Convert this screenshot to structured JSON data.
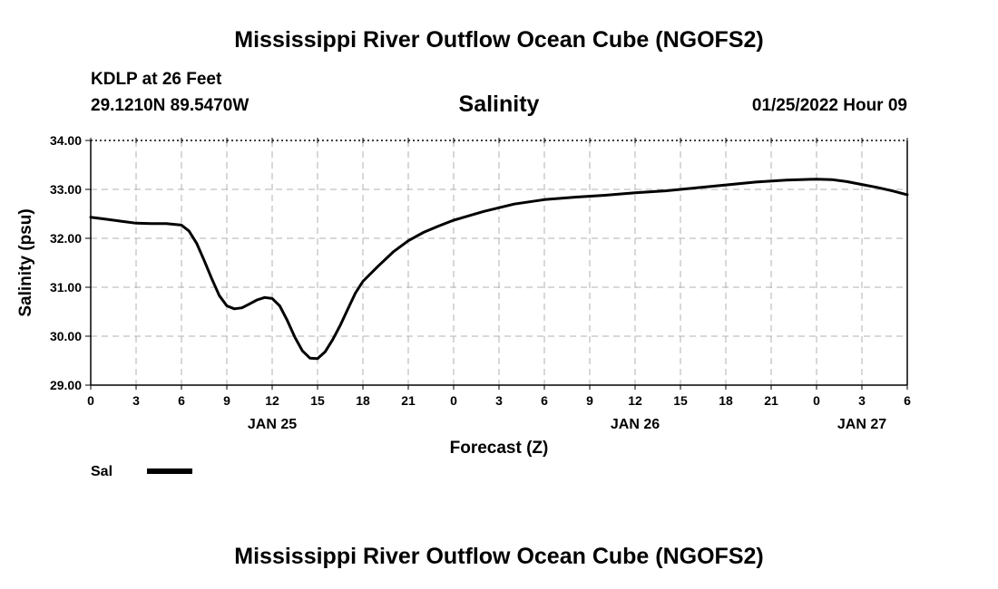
{
  "page": {
    "title": "Mississippi River Outflow Ocean Cube (NGOFS2)",
    "footer_title": "Mississippi River Outflow Ocean Cube (NGOFS2)",
    "station": "KDLP at 26 Feet",
    "coords": "29.1210N  89.5470W",
    "subtitle": "Salinity",
    "datetime": "01/25/2022 Hour 09"
  },
  "chart_data": {
    "type": "line",
    "title": "Salinity",
    "xlabel": "Forecast (Z)",
    "ylabel": "Salinity (psu)",
    "ylim": [
      29,
      34
    ],
    "xlim": [
      0,
      54
    ],
    "grid": true,
    "y_ticks": [
      "29.00",
      "30.00",
      "31.00",
      "32.00",
      "33.00",
      "34.00"
    ],
    "x_ticks": [
      "0",
      "3",
      "6",
      "9",
      "12",
      "15",
      "18",
      "21",
      "0",
      "3",
      "6",
      "9",
      "12",
      "15",
      "18",
      "21",
      "0",
      "3",
      "6"
    ],
    "day_labels": [
      {
        "label": "JAN 25",
        "x": 12
      },
      {
        "label": "JAN 26",
        "x": 36
      },
      {
        "label": "JAN 27",
        "x": 51
      }
    ],
    "series": [
      {
        "name": "Sal",
        "color": "#000000",
        "x": [
          0,
          1,
          2,
          3,
          4,
          5,
          6,
          6.5,
          7,
          7.5,
          8,
          8.5,
          9,
          9.5,
          10,
          10.5,
          11,
          11.5,
          12,
          12.5,
          13,
          13.5,
          14,
          14.5,
          15,
          15.5,
          16,
          16.5,
          17,
          17.5,
          18,
          19,
          20,
          21,
          22,
          23,
          24,
          26,
          28,
          30,
          32,
          34,
          36,
          38,
          40,
          42,
          44,
          46,
          48,
          49,
          50,
          51,
          52,
          53,
          54
        ],
        "values": [
          32.43,
          32.39,
          32.35,
          32.31,
          32.3,
          32.3,
          32.27,
          32.15,
          31.9,
          31.55,
          31.18,
          30.83,
          30.62,
          30.56,
          30.58,
          30.66,
          30.74,
          30.79,
          30.77,
          30.62,
          30.32,
          29.98,
          29.7,
          29.55,
          29.54,
          29.68,
          29.93,
          30.22,
          30.55,
          30.88,
          31.12,
          31.43,
          31.72,
          31.95,
          32.12,
          32.25,
          32.37,
          32.55,
          32.7,
          32.79,
          32.84,
          32.88,
          32.93,
          32.97,
          33.03,
          33.09,
          33.15,
          33.19,
          33.21,
          33.2,
          33.16,
          33.1,
          33.04,
          32.97,
          32.89
        ]
      }
    ],
    "legend": {
      "label": "Sal",
      "position": "bottom-left"
    }
  }
}
